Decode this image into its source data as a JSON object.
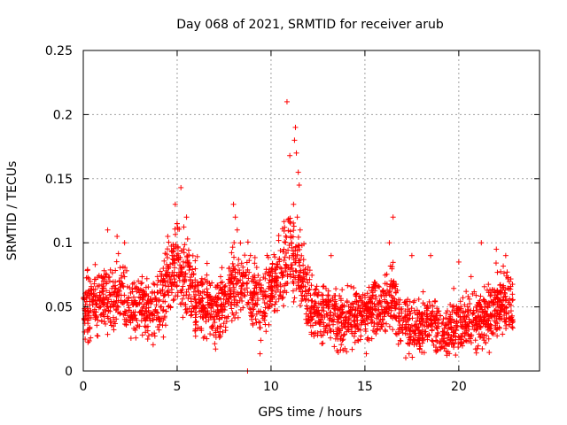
{
  "chart_data": {
    "type": "scatter",
    "title": "Day 068 of 2021, SRMTID for receiver arub",
    "xlabel": "GPS time / hours",
    "ylabel": "SRMTID / TECUs",
    "xlim": [
      0,
      24.3
    ],
    "ylim": [
      0,
      0.25
    ],
    "grid": true,
    "marker": "+",
    "marker_color": "#ff0000",
    "x_ticks": [
      0,
      5,
      10,
      15,
      20
    ],
    "x_tick_labels": [
      "0",
      "5",
      "10",
      "15",
      "20"
    ],
    "y_ticks": [
      0,
      0.05,
      0.1,
      0.15,
      0.2,
      0.25
    ],
    "y_tick_labels": [
      "0",
      "0.05",
      "0.1",
      "0.15",
      "0.2",
      "0.25"
    ],
    "series": [
      {
        "name": "SRMTID",
        "trend": [
          [
            0.0,
            0.05
          ],
          [
            0.5,
            0.052
          ],
          [
            1.0,
            0.055
          ],
          [
            1.5,
            0.058
          ],
          [
            2.0,
            0.06
          ],
          [
            2.5,
            0.048
          ],
          [
            3.0,
            0.055
          ],
          [
            3.5,
            0.045
          ],
          [
            4.0,
            0.05
          ],
          [
            4.5,
            0.07
          ],
          [
            5.0,
            0.085
          ],
          [
            5.5,
            0.075
          ],
          [
            6.0,
            0.055
          ],
          [
            6.5,
            0.05
          ],
          [
            7.0,
            0.045
          ],
          [
            7.5,
            0.055
          ],
          [
            8.0,
            0.065
          ],
          [
            8.5,
            0.07
          ],
          [
            9.0,
            0.06
          ],
          [
            9.5,
            0.05
          ],
          [
            10.0,
            0.065
          ],
          [
            10.5,
            0.075
          ],
          [
            11.0,
            0.095
          ],
          [
            11.5,
            0.08
          ],
          [
            12.0,
            0.05
          ],
          [
            12.5,
            0.045
          ],
          [
            13.0,
            0.045
          ],
          [
            13.5,
            0.04
          ],
          [
            14.0,
            0.04
          ],
          [
            14.5,
            0.042
          ],
          [
            15.0,
            0.045
          ],
          [
            15.5,
            0.05
          ],
          [
            16.0,
            0.05
          ],
          [
            16.5,
            0.06
          ],
          [
            17.0,
            0.04
          ],
          [
            17.5,
            0.035
          ],
          [
            18.0,
            0.035
          ],
          [
            18.5,
            0.04
          ],
          [
            19.0,
            0.03
          ],
          [
            19.5,
            0.03
          ],
          [
            20.0,
            0.04
          ],
          [
            20.5,
            0.04
          ],
          [
            21.0,
            0.04
          ],
          [
            21.5,
            0.042
          ],
          [
            22.0,
            0.05
          ],
          [
            22.5,
            0.055
          ],
          [
            22.9,
            0.05
          ]
        ],
        "points": [
          [
            10.85,
            0.21
          ],
          [
            11.3,
            0.19
          ],
          [
            11.25,
            0.18
          ],
          [
            11.35,
            0.17
          ],
          [
            11.45,
            0.155
          ],
          [
            11.5,
            0.145
          ],
          [
            11.2,
            0.13
          ],
          [
            11.4,
            0.12
          ],
          [
            11.0,
            0.168
          ],
          [
            11.55,
            0.11
          ],
          [
            5.2,
            0.143
          ],
          [
            4.9,
            0.13
          ],
          [
            5.5,
            0.12
          ],
          [
            5.0,
            0.115
          ],
          [
            4.5,
            0.105
          ],
          [
            8.0,
            0.13
          ],
          [
            8.1,
            0.12
          ],
          [
            8.2,
            0.11
          ],
          [
            16.5,
            0.12
          ],
          [
            16.3,
            0.1
          ],
          [
            1.3,
            0.11
          ],
          [
            1.8,
            0.105
          ],
          [
            2.2,
            0.1
          ],
          [
            20.0,
            0.085
          ],
          [
            21.2,
            0.1
          ],
          [
            22.0,
            0.095
          ],
          [
            22.5,
            0.09
          ],
          [
            18.5,
            0.09
          ],
          [
            17.5,
            0.09
          ],
          [
            13.2,
            0.09
          ],
          [
            8.75,
            0.0
          ]
        ]
      }
    ]
  }
}
